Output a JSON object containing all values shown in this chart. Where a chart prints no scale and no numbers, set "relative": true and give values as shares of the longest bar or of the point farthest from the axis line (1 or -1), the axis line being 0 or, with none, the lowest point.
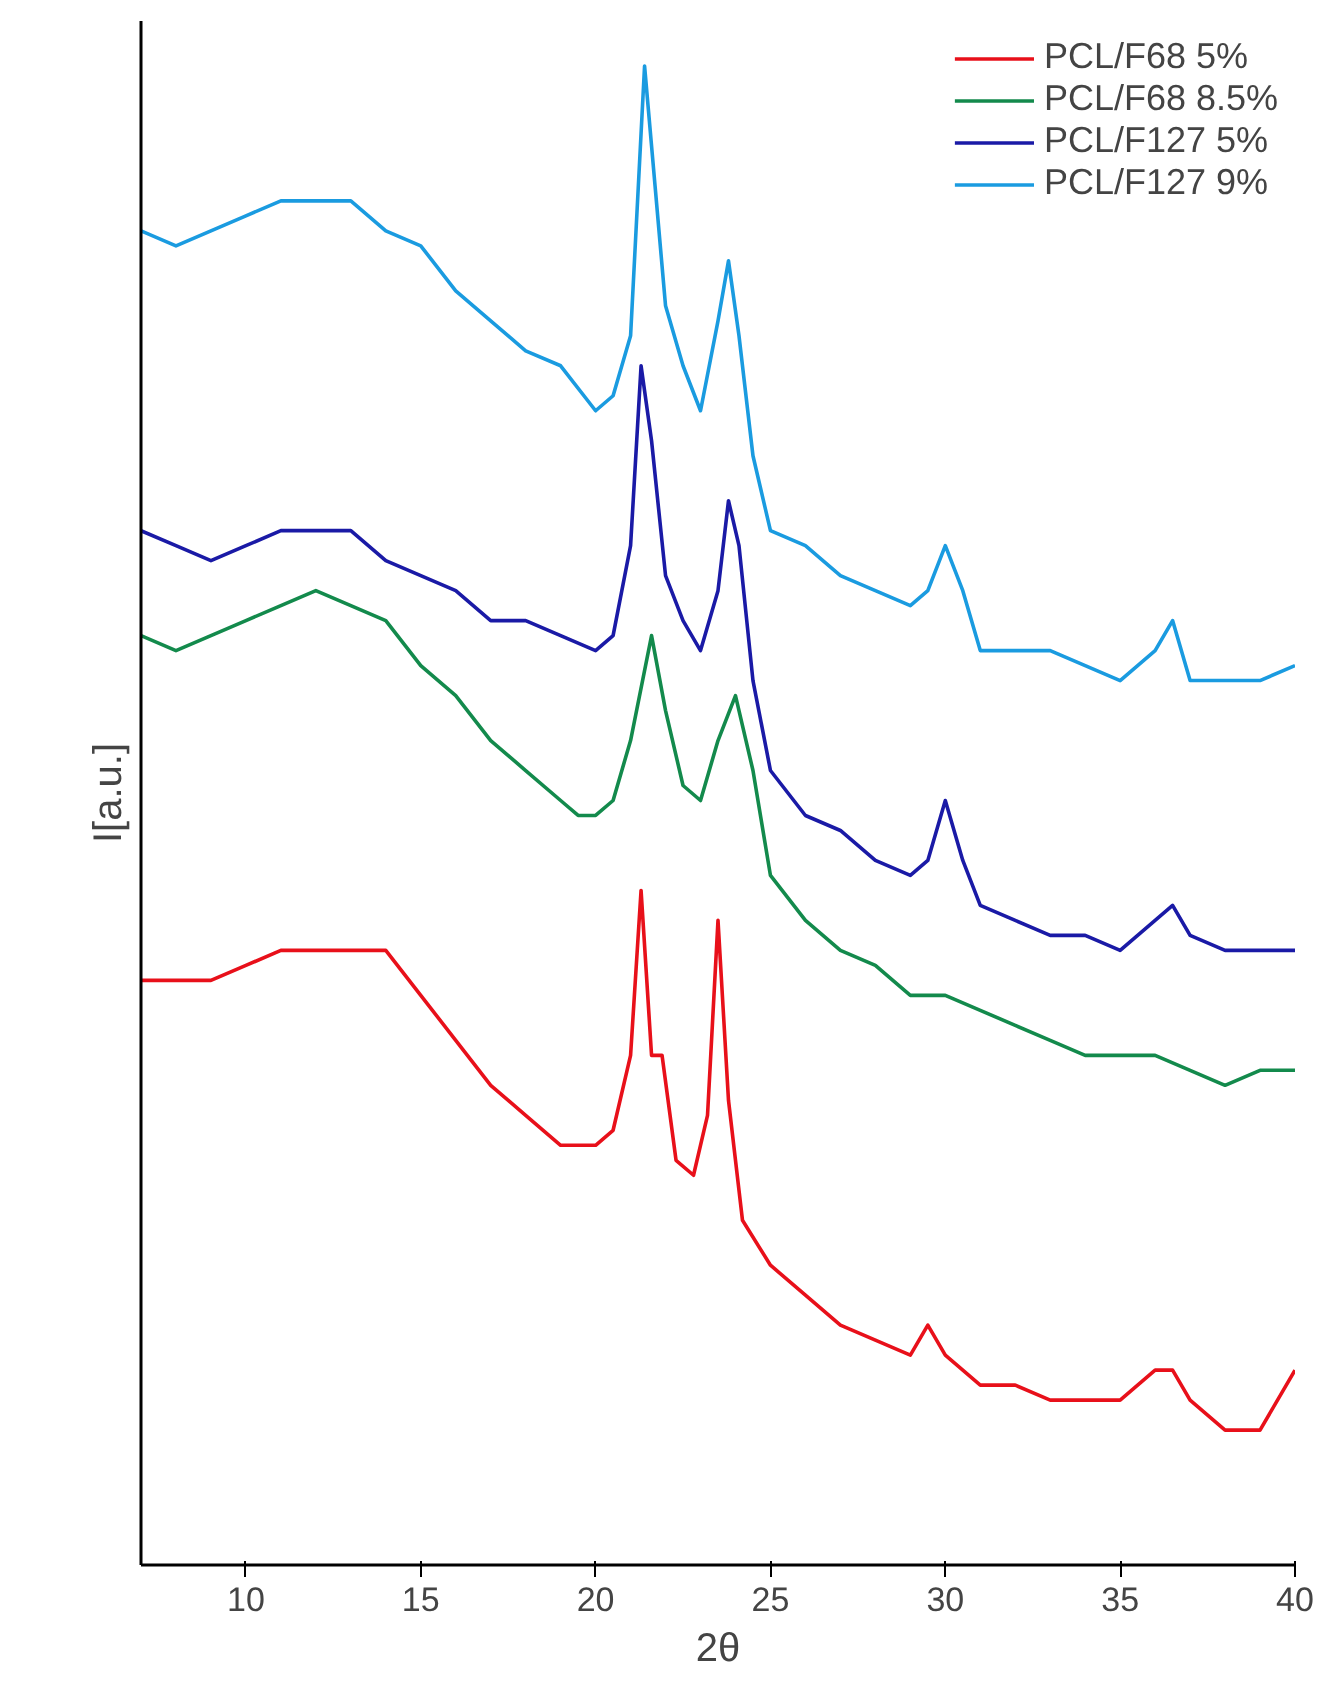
{
  "chart_data": {
    "type": "line",
    "xlabel": "2θ",
    "ylabel": "I[a.u.]",
    "relative": true,
    "xlim": [
      7,
      40
    ],
    "xticks": [
      10,
      15,
      20,
      25,
      30,
      35,
      40
    ],
    "tick_labels": "x",
    "legend": "top right",
    "grid": false,
    "series": [
      {
        "name": "PCL/F68 5%",
        "color": "#e8101a",
        "x": [
          7,
          8,
          9,
          10,
          11,
          12,
          13,
          14,
          15,
          16,
          17,
          18,
          19,
          20,
          20.5,
          21,
          21.3,
          21.6,
          21.9,
          22.3,
          22.8,
          23.2,
          23.5,
          23.8,
          24.2,
          25,
          26,
          27,
          28,
          29,
          29.5,
          30,
          31,
          32,
          33,
          34,
          35,
          36,
          36.5,
          37,
          38,
          39,
          40
        ],
        "values": [
          0.39,
          0.39,
          0.39,
          0.4,
          0.41,
          0.41,
          0.41,
          0.41,
          0.38,
          0.35,
          0.32,
          0.3,
          0.28,
          0.28,
          0.29,
          0.34,
          0.45,
          0.34,
          0.34,
          0.27,
          0.26,
          0.3,
          0.43,
          0.31,
          0.23,
          0.2,
          0.18,
          0.16,
          0.15,
          0.14,
          0.16,
          0.14,
          0.12,
          0.12,
          0.11,
          0.11,
          0.11,
          0.13,
          0.13,
          0.11,
          0.09,
          0.09,
          0.13
        ]
      },
      {
        "name": "PCL/F68 8.5%",
        "color": "#138a4c",
        "x": [
          7,
          8,
          9,
          10,
          11,
          12,
          13,
          14,
          15,
          16,
          17,
          18,
          19,
          19.5,
          20,
          20.5,
          21,
          21.6,
          22,
          22.5,
          23,
          23.5,
          24,
          24.5,
          25,
          26,
          27,
          28,
          29,
          30,
          31,
          32,
          33,
          34,
          35,
          36,
          37,
          38,
          39,
          40
        ],
        "values": [
          0.62,
          0.61,
          0.62,
          0.63,
          0.64,
          0.65,
          0.64,
          0.63,
          0.6,
          0.58,
          0.55,
          0.53,
          0.51,
          0.5,
          0.5,
          0.51,
          0.55,
          0.62,
          0.57,
          0.52,
          0.51,
          0.55,
          0.58,
          0.53,
          0.46,
          0.43,
          0.41,
          0.4,
          0.38,
          0.38,
          0.37,
          0.36,
          0.35,
          0.34,
          0.34,
          0.34,
          0.33,
          0.32,
          0.33,
          0.33
        ]
      },
      {
        "name": "PCL/F127 5%",
        "color": "#1a1aa6",
        "x": [
          7,
          8,
          9,
          10,
          11,
          12,
          13,
          14,
          15,
          16,
          17,
          18,
          19,
          20,
          20.5,
          21,
          21.3,
          21.6,
          22,
          22.5,
          23,
          23.5,
          23.8,
          24.1,
          24.5,
          25,
          26,
          27,
          28,
          29,
          29.5,
          30,
          30.5,
          31,
          32,
          33,
          34,
          35,
          36,
          36.5,
          37,
          38,
          39,
          40
        ],
        "values": [
          0.69,
          0.68,
          0.67,
          0.68,
          0.69,
          0.69,
          0.69,
          0.67,
          0.66,
          0.65,
          0.63,
          0.63,
          0.62,
          0.61,
          0.62,
          0.68,
          0.8,
          0.75,
          0.66,
          0.63,
          0.61,
          0.65,
          0.71,
          0.68,
          0.59,
          0.53,
          0.5,
          0.49,
          0.47,
          0.46,
          0.47,
          0.51,
          0.47,
          0.44,
          0.43,
          0.42,
          0.42,
          0.41,
          0.43,
          0.44,
          0.42,
          0.41,
          0.41,
          0.41
        ]
      },
      {
        "name": "PCL/F127 9%",
        "color": "#1a9be0",
        "x": [
          7,
          8,
          9,
          10,
          11,
          12,
          13,
          14,
          15,
          16,
          17,
          18,
          19,
          20,
          20.5,
          21,
          21.4,
          21.7,
          22,
          22.5,
          23,
          23.5,
          23.8,
          24.1,
          24.5,
          25,
          26,
          27,
          28,
          29,
          29.5,
          30,
          30.5,
          31,
          32,
          33,
          34,
          35,
          36,
          36.5,
          37,
          38,
          39,
          40
        ],
        "values": [
          0.89,
          0.88,
          0.89,
          0.9,
          0.91,
          0.91,
          0.91,
          0.89,
          0.88,
          0.85,
          0.83,
          0.81,
          0.8,
          0.77,
          0.78,
          0.82,
          1.0,
          0.92,
          0.84,
          0.8,
          0.77,
          0.83,
          0.87,
          0.82,
          0.74,
          0.69,
          0.68,
          0.66,
          0.65,
          0.64,
          0.65,
          0.68,
          0.65,
          0.61,
          0.61,
          0.61,
          0.6,
          0.59,
          0.61,
          0.63,
          0.59,
          0.59,
          0.59,
          0.6
        ]
      }
    ]
  }
}
